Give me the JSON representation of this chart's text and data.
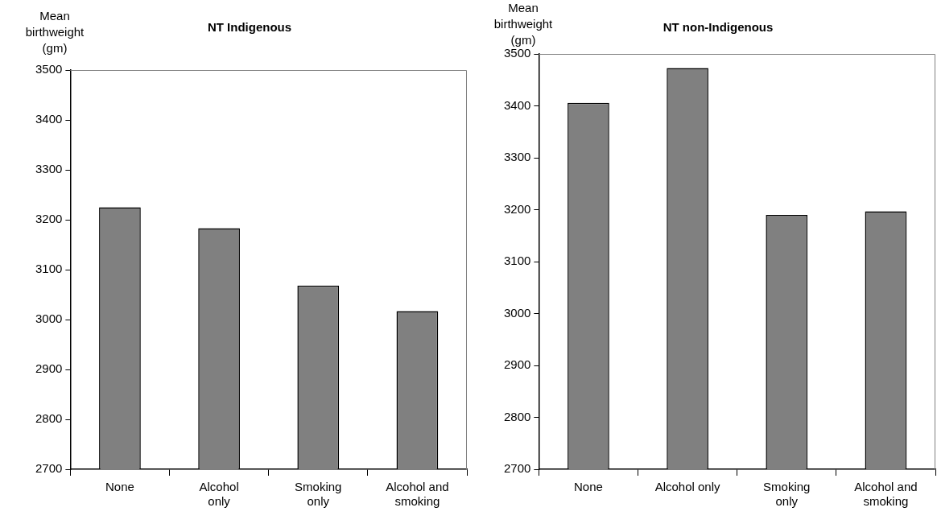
{
  "chart_data": [
    {
      "type": "bar",
      "title": "NT Indigenous",
      "ylabel": "Mean birthweight (gm)",
      "categories": [
        "None",
        "Alcohol only",
        "Smoking only",
        "Alcohol and smoking"
      ],
      "values": [
        3225,
        3183,
        3068,
        3017
      ],
      "color": "#808080",
      "ylim": [
        2700,
        3500
      ],
      "yticks": [
        2700,
        2800,
        2900,
        3000,
        3100,
        3200,
        3300,
        3400,
        3500
      ],
      "grid": false
    },
    {
      "type": "bar",
      "title": "NT non-Indigenous",
      "ylabel": "Mean birthweight (gm)",
      "categories": [
        "None",
        "Alcohol only",
        "Smoking only",
        "Alcohol and smoking"
      ],
      "values": [
        3406,
        3473,
        3190,
        3197
      ],
      "color": "#808080",
      "ylim": [
        2700,
        3500
      ],
      "yticks": [
        2700,
        2800,
        2900,
        3000,
        3100,
        3200,
        3300,
        3400,
        3500
      ],
      "grid": false
    }
  ]
}
